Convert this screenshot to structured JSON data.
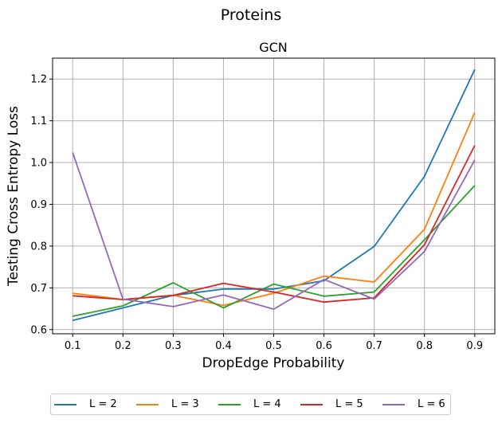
{
  "chart_data": {
    "type": "line",
    "suptitle": "Proteins",
    "title": "GCN",
    "xlabel": "DropEdge Probability",
    "ylabel": "Testing Cross Entropy Loss",
    "x": [
      0.1,
      0.2,
      0.3,
      0.4,
      0.5,
      0.6,
      0.7,
      0.8,
      0.9
    ],
    "xticks": [
      "0.1",
      "0.2",
      "0.3",
      "0.4",
      "0.5",
      "0.6",
      "0.7",
      "0.8",
      "0.9"
    ],
    "yticks": [
      "0.6",
      "0.7",
      "0.8",
      "0.9",
      "1.0",
      "1.1",
      "1.2"
    ],
    "ylim": [
      0.59,
      1.25
    ],
    "xlim": [
      0.06,
      0.94
    ],
    "grid": true,
    "legend_position": "bottom-center",
    "series": [
      {
        "name": "L = 2",
        "color": "#1f77b4",
        "values": [
          0.622,
          0.652,
          0.682,
          0.697,
          0.697,
          0.717,
          0.799,
          0.967,
          1.223
        ]
      },
      {
        "name": "L = 3",
        "color": "#ff7f0e",
        "values": [
          0.687,
          0.672,
          0.682,
          0.658,
          0.687,
          0.728,
          0.714,
          0.84,
          1.12
        ]
      },
      {
        "name": "L = 4",
        "color": "#2ca02c",
        "values": [
          0.632,
          0.657,
          0.712,
          0.652,
          0.709,
          0.68,
          0.69,
          0.815,
          0.945
        ]
      },
      {
        "name": "L = 5",
        "color": "#d62728",
        "values": [
          0.681,
          0.672,
          0.682,
          0.711,
          0.69,
          0.666,
          0.676,
          0.803,
          1.041
        ]
      },
      {
        "name": "L = 6",
        "color": "#9467bd",
        "values": [
          1.024,
          0.673,
          0.655,
          0.683,
          0.649,
          0.72,
          0.673,
          0.787,
          1.006
        ]
      }
    ]
  }
}
